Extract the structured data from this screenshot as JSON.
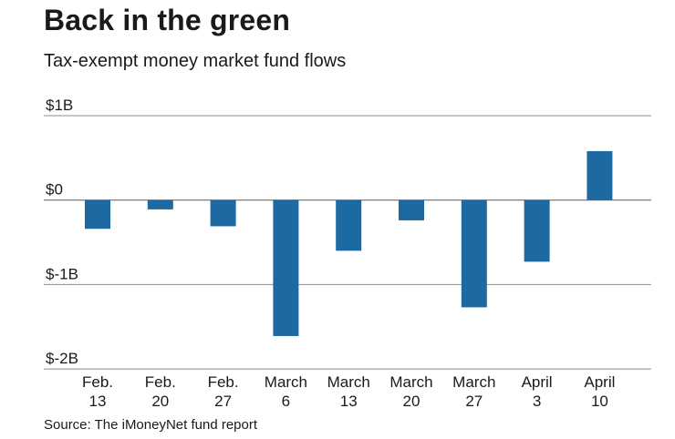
{
  "chart_data": {
    "type": "bar",
    "title": "Back in the green",
    "subtitle": "Tax-exempt money market fund flows",
    "source": "Source: The iMoneyNet fund report",
    "xlabel": "",
    "ylabel": "",
    "ylim": [
      -2,
      1
    ],
    "y_unit": "billions of dollars",
    "y_ticks": [
      {
        "value": 1,
        "label": "$1B"
      },
      {
        "value": 0,
        "label": "$0"
      },
      {
        "value": -1,
        "label": "$-1B"
      },
      {
        "value": -2,
        "label": "$-2B"
      }
    ],
    "categories": [
      {
        "line1": "Feb.",
        "line2": "13"
      },
      {
        "line1": "Feb.",
        "line2": "20"
      },
      {
        "line1": "Feb.",
        "line2": "27"
      },
      {
        "line1": "March",
        "line2": "6"
      },
      {
        "line1": "March",
        "line2": "13"
      },
      {
        "line1": "March",
        "line2": "20"
      },
      {
        "line1": "March",
        "line2": "27"
      },
      {
        "line1": "April",
        "line2": "3"
      },
      {
        "line1": "April",
        "line2": "10"
      }
    ],
    "values": [
      -0.34,
      -0.11,
      -0.31,
      -1.61,
      -0.6,
      -0.24,
      -1.27,
      -0.73,
      0.58
    ],
    "grid": true,
    "legend": "none",
    "bar_color": "#1d6aa2"
  }
}
